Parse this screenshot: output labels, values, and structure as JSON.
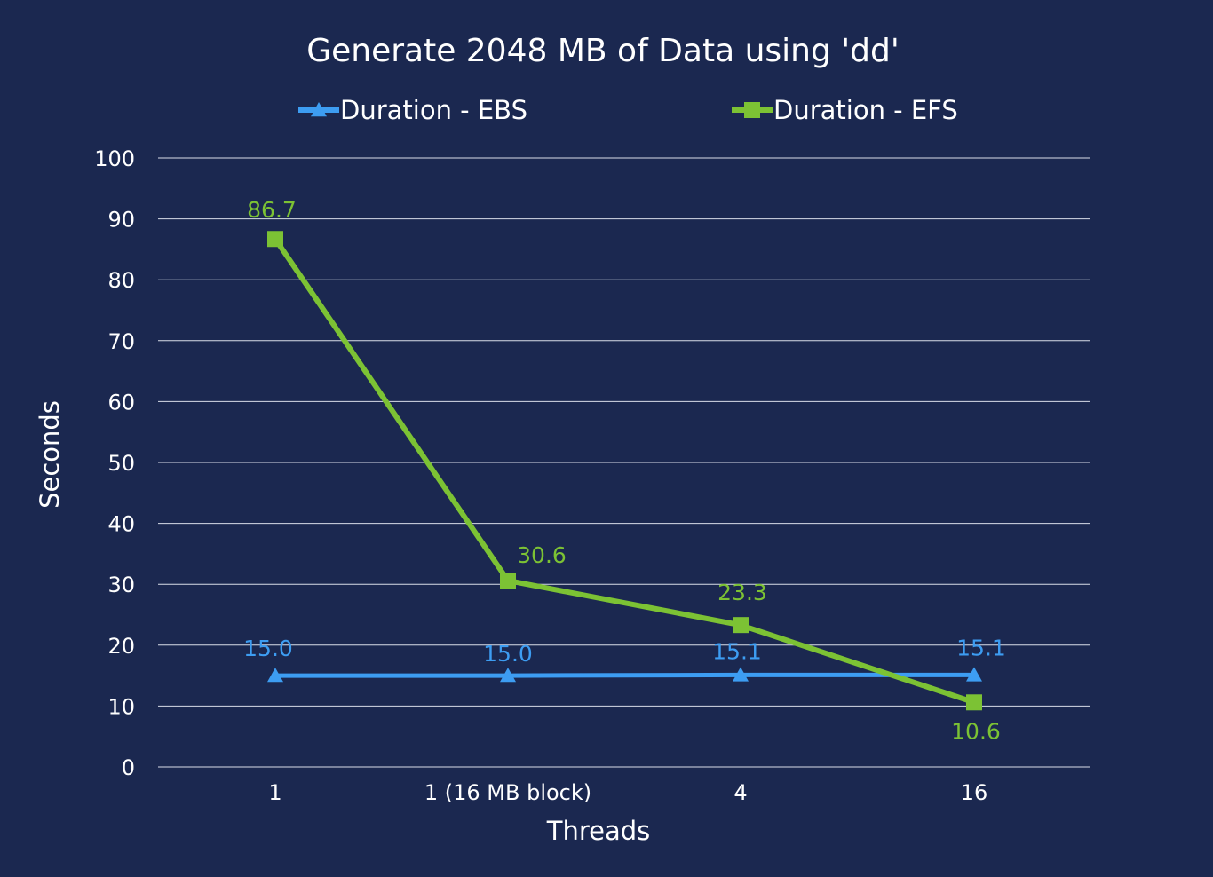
{
  "chart_data": {
    "type": "line",
    "title": "Generate 2048 MB of Data using 'dd'",
    "xlabel": "Threads",
    "ylabel": "Seconds",
    "categories": [
      "1",
      "1 (16 MB block)",
      "4",
      "16"
    ],
    "ylim": [
      0,
      100
    ],
    "yticks": [
      0,
      10,
      20,
      30,
      40,
      50,
      60,
      70,
      80,
      90,
      100
    ],
    "grid": true,
    "legend_position": "top",
    "series": [
      {
        "name": "Duration - EBS",
        "values": [
          15.0,
          15.0,
          15.1,
          15.1
        ],
        "labels": [
          "15.0",
          "15.0",
          "15.1",
          "15.1"
        ],
        "color": "#3d9df2",
        "marker": "triangle"
      },
      {
        "name": "Duration - EFS",
        "values": [
          86.7,
          30.6,
          23.3,
          10.6
        ],
        "labels": [
          "86.7",
          "30.6",
          "23.3",
          "10.6"
        ],
        "color": "#7cc234",
        "marker": "square"
      }
    ]
  }
}
